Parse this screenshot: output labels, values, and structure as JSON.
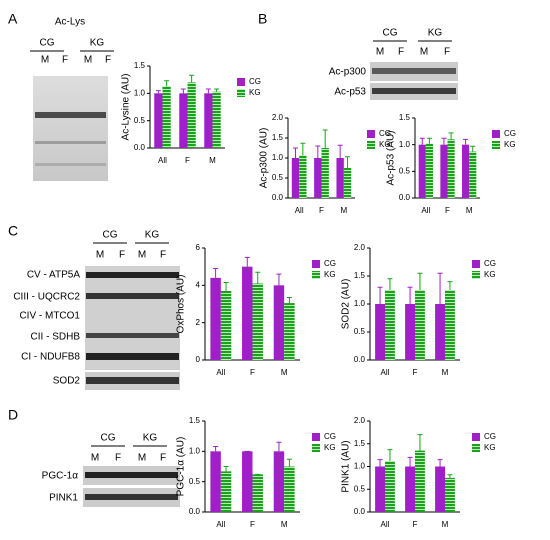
{
  "chart_data": [
    {
      "type": "bar",
      "ylabel": "Ac-Lysine (AU)",
      "categories": [
        "All",
        "F",
        "M"
      ],
      "ylim": [
        0,
        1.5
      ],
      "yticks": [
        {
          "value": 0,
          "label": "0.0"
        },
        0.5,
        {
          "value": 1,
          "label": "1.0"
        },
        1.5
      ],
      "series": [
        {
          "name": "CG",
          "color": "#a020c8",
          "values": [
            1.0,
            1.0,
            1.0
          ],
          "errors": [
            0.05,
            0.08,
            0.08
          ]
        },
        {
          "name": "KG",
          "color": "#1aa31a",
          "hatch": true,
          "values": [
            1.13,
            1.2,
            1.03
          ],
          "errors": [
            0.1,
            0.13,
            0.05
          ]
        }
      ]
    },
    {
      "type": "bar",
      "ylabel": "Ac-p300 (AU)",
      "categories": [
        "All",
        "F",
        "M"
      ],
      "ylim": [
        0,
        2
      ],
      "yticks": [
        {
          "value": 0,
          "label": "0.0"
        },
        0.5,
        {
          "value": 1,
          "label": "1.0"
        },
        1.5,
        {
          "value": 2,
          "label": "2.0"
        }
      ],
      "series": [
        {
          "name": "CG",
          "color": "#a020c8",
          "values": [
            1.0,
            1.0,
            1.0
          ],
          "errors": [
            0.25,
            0.3,
            0.32
          ]
        },
        {
          "name": "KG",
          "color": "#1aa31a",
          "hatch": true,
          "values": [
            1.07,
            1.25,
            0.75
          ],
          "errors": [
            0.3,
            0.45,
            0.28
          ]
        }
      ]
    },
    {
      "type": "bar",
      "ylabel": "Ac-p53 (AU)",
      "categories": [
        "All",
        "F",
        "M"
      ],
      "ylim": [
        0,
        1.5
      ],
      "yticks": [
        {
          "value": 0,
          "label": "0.0"
        },
        0.5,
        {
          "value": 1,
          "label": "1.0"
        },
        1.5
      ],
      "series": [
        {
          "name": "CG",
          "color": "#a020c8",
          "values": [
            1.0,
            1.0,
            1.0
          ],
          "errors": [
            0.12,
            0.12,
            0.1
          ]
        },
        {
          "name": "KG",
          "color": "#1aa31a",
          "hatch": true,
          "values": [
            1.02,
            1.1,
            0.87
          ],
          "errors": [
            0.1,
            0.12,
            0.1
          ]
        }
      ]
    },
    {
      "type": "bar",
      "ylabel": "OxPhos (AU)",
      "categories": [
        "All",
        "F",
        "M"
      ],
      "ylim": [
        0,
        6
      ],
      "yticks": [
        0,
        2,
        4,
        6
      ],
      "series": [
        {
          "name": "CG",
          "color": "#a020c8",
          "values": [
            4.4,
            5.0,
            4.0
          ],
          "errors": [
            0.5,
            0.5,
            0.6
          ]
        },
        {
          "name": "KG",
          "color": "#1aa31a",
          "hatch": true,
          "values": [
            3.7,
            4.1,
            3.05
          ],
          "errors": [
            0.45,
            0.6,
            0.3
          ]
        }
      ]
    },
    {
      "type": "bar",
      "ylabel": "SOD2 (AU)",
      "categories": [
        "All",
        "F",
        "M"
      ],
      "ylim": [
        0,
        2
      ],
      "yticks": [
        {
          "value": 0,
          "label": "0.0"
        },
        0.5,
        {
          "value": 1,
          "label": "1.0"
        },
        1.5,
        {
          "value": 2,
          "label": "2.0"
        }
      ],
      "series": [
        {
          "name": "CG",
          "color": "#a020c8",
          "values": [
            1.0,
            1.0,
            1.0
          ],
          "errors": [
            0.3,
            0.3,
            0.55
          ]
        },
        {
          "name": "KG",
          "color": "#1aa31a",
          "hatch": true,
          "values": [
            1.25,
            1.25,
            1.25
          ],
          "errors": [
            0.2,
            0.3,
            0.15
          ]
        }
      ]
    },
    {
      "type": "bar",
      "ylabel": "PGC-1α (AU)",
      "categories": [
        "All",
        "F",
        "M"
      ],
      "ylim": [
        0,
        1.5
      ],
      "yticks": [
        {
          "value": 0,
          "label": "0.0"
        },
        0.5,
        {
          "value": 1,
          "label": "1.0"
        },
        1.5
      ],
      "series": [
        {
          "name": "CG",
          "color": "#a020c8",
          "values": [
            1.0,
            1.0,
            1.0
          ],
          "errors": [
            0.08,
            0,
            0.15
          ]
        },
        {
          "name": "KG",
          "color": "#1aa31a",
          "hatch": true,
          "values": [
            0.67,
            0.62,
            0.75
          ],
          "errors": [
            0.08,
            0,
            0.12
          ]
        }
      ]
    },
    {
      "type": "bar",
      "ylabel": "PINK1 (AU)",
      "categories": [
        "All",
        "F",
        "M"
      ],
      "ylim": [
        0,
        2
      ],
      "yticks": [
        {
          "value": 0,
          "label": "0.0"
        },
        0.5,
        {
          "value": 1,
          "label": "1.0"
        },
        1.5,
        {
          "value": 2,
          "label": "2.0"
        }
      ],
      "series": [
        {
          "name": "CG",
          "color": "#a020c8",
          "values": [
            1.0,
            1.0,
            1.0
          ],
          "errors": [
            0.15,
            0.2,
            0.15
          ]
        },
        {
          "name": "KG",
          "color": "#1aa31a",
          "hatch": true,
          "values": [
            1.12,
            1.35,
            0.75
          ],
          "errors": [
            0.25,
            0.35,
            0.07
          ]
        }
      ]
    }
  ],
  "blots": [
    {
      "letter": "A",
      "title": "Ac-Lys",
      "groups": [
        "CG",
        "KG"
      ],
      "lanes": [
        "M",
        "F",
        "M",
        "F"
      ]
    },
    {
      "letter": "B",
      "groups": [
        "CG",
        "KG"
      ],
      "lanes": [
        "M",
        "F",
        "M",
        "F"
      ],
      "bands": [
        "Ac-p300",
        "Ac-p53"
      ]
    },
    {
      "letter": "C",
      "groups": [
        "CG",
        "KG"
      ],
      "lanes": [
        "M",
        "F",
        "M",
        "F"
      ],
      "bands": [
        "CV - ATP5A",
        "CIII - UQCRC2",
        "CIV - MTCO1",
        "CII - SDHB",
        "CI - NDUFB8",
        "SOD2"
      ]
    },
    {
      "letter": "D",
      "groups": [
        "CG",
        "KG"
      ],
      "lanes": [
        "M",
        "F",
        "M",
        "F"
      ],
      "bands": [
        "PGC-1α",
        "PINK1"
      ]
    }
  ]
}
